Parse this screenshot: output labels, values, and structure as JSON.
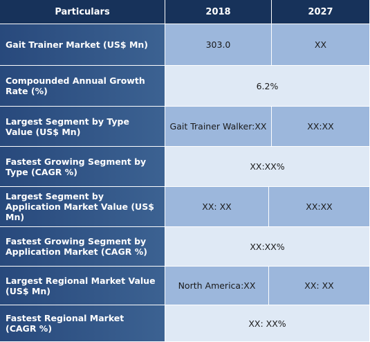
{
  "header": {
    "particulars": "Particulars",
    "year_1": "2018",
    "year_2": "2027"
  },
  "rows": [
    {
      "label": "Gait Trainer  Market (US$ Mn)",
      "v2018": "303.0",
      "v2027": "XX"
    },
    {
      "label": "Compounded Annual Growth Rate (%)",
      "merged": "6.2%"
    },
    {
      "label": "Largest Segment by Type Value (US$ Mn)",
      "v2018": "Gait Trainer Walker:XX",
      "v2027": "XX:XX"
    },
    {
      "label": "Fastest Growing Segment by Type (CAGR %)",
      "merged": "XX:XX%"
    },
    {
      "label": "Largest Segment by Application Market Value (US$ Mn)",
      "v2018": "XX: XX",
      "v2027": "XX:XX"
    },
    {
      "label": "Fastest Growing Segment by Application Market (CAGR %)",
      "merged": "XX:XX%"
    },
    {
      "label": "Largest Regional Market Value (US$ Mn)",
      "v2018": "North America:XX",
      "v2027": "XX: XX"
    },
    {
      "label": "Fastest Regional Market (CAGR %)",
      "merged": "XX: XX%"
    }
  ]
}
